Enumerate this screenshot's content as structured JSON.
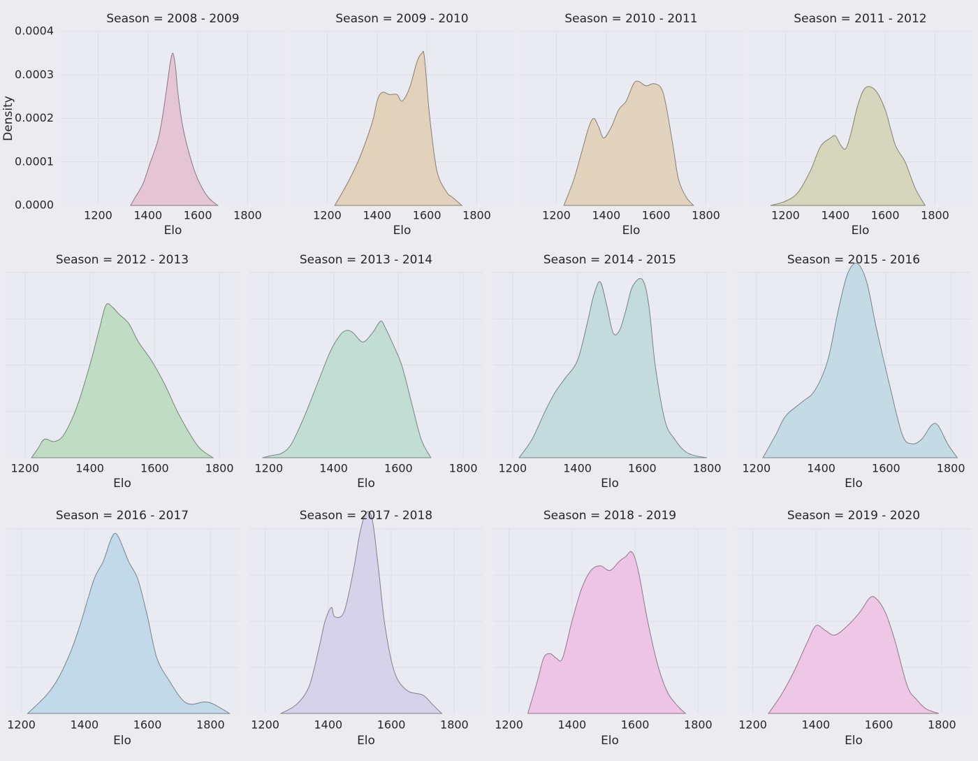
{
  "chart_data": [
    {
      "type": "area",
      "title": "Season = 2008 - 2009",
      "xlabel": "Elo",
      "ylabel": "Density",
      "xlim": [
        1050,
        1950
      ],
      "ylim": [
        0,
        0.0004
      ],
      "yticks": [
        "0.0000",
        "0.0001",
        "0.0002",
        "0.0003",
        "0.0004"
      ],
      "xticks": [
        1200,
        1400,
        1600,
        1800
      ],
      "color": "#e5c5d3",
      "x": [
        1330,
        1350,
        1380,
        1410,
        1440,
        1460,
        1480,
        1490,
        1500,
        1510,
        1520,
        1540,
        1570,
        1600,
        1640,
        1680
      ],
      "y": [
        0,
        2e-05,
        5e-05,
        0.0001,
        0.00015,
        0.00021,
        0.00029,
        0.00033,
        0.00035,
        0.00032,
        0.00026,
        0.00018,
        0.00011,
        6e-05,
        2e-05,
        0
      ]
    },
    {
      "type": "area",
      "title": "Season = 2009 - 2010",
      "xlabel": "Elo",
      "xlim": [
        1050,
        1950
      ],
      "ylim": [
        0,
        0.0004
      ],
      "xticks": [
        1200,
        1400,
        1600,
        1800
      ],
      "color": "#e2d1bb",
      "x": [
        1230,
        1280,
        1330,
        1380,
        1400,
        1420,
        1450,
        1480,
        1500,
        1530,
        1560,
        1580,
        1590,
        1610,
        1640,
        1680,
        1700,
        1740
      ],
      "y": [
        0,
        5e-05,
        0.00011,
        0.00019,
        0.00024,
        0.00026,
        0.000255,
        0.000255,
        0.00024,
        0.00027,
        0.00033,
        0.00035,
        0.00034,
        0.00021,
        8e-05,
        3e-05,
        2e-05,
        0
      ]
    },
    {
      "type": "area",
      "title": "Season = 2010 - 2011",
      "xlabel": "Elo",
      "xlim": [
        1050,
        1950
      ],
      "ylim": [
        0,
        0.0004
      ],
      "xticks": [
        1200,
        1400,
        1600,
        1800
      ],
      "color": "#e2d3bf",
      "x": [
        1230,
        1270,
        1300,
        1330,
        1350,
        1370,
        1390,
        1420,
        1450,
        1480,
        1510,
        1530,
        1560,
        1590,
        1620,
        1640,
        1670,
        1690,
        1720,
        1750
      ],
      "y": [
        0,
        6e-05,
        0.00012,
        0.00018,
        0.0002,
        0.00018,
        0.000155,
        0.00018,
        0.00022,
        0.00024,
        0.00028,
        0.000285,
        0.000275,
        0.00028,
        0.00027,
        0.00023,
        0.00013,
        6e-05,
        2e-05,
        0
      ]
    },
    {
      "type": "area",
      "title": "Season = 2011 - 2012",
      "xlabel": "Elo",
      "xlim": [
        1050,
        1950
      ],
      "ylim": [
        0,
        0.0004
      ],
      "xticks": [
        1200,
        1400,
        1600,
        1800
      ],
      "color": "#d6d6bc",
      "x": [
        1140,
        1200,
        1250,
        1300,
        1340,
        1380,
        1400,
        1420,
        1440,
        1460,
        1490,
        1520,
        1560,
        1600,
        1640,
        1680,
        1720,
        1760
      ],
      "y": [
        0,
        1e-05,
        3e-05,
        8e-05,
        0.000135,
        0.000155,
        0.00016,
        0.00014,
        0.00013,
        0.00016,
        0.00023,
        0.00027,
        0.000265,
        0.00022,
        0.00014,
        0.0001,
        4e-05,
        0
      ]
    },
    {
      "type": "area",
      "title": "Season = 2012 - 2013",
      "xlabel": "Elo",
      "xlim": [
        1140,
        1860
      ],
      "ylim": [
        0,
        0.0004
      ],
      "xticks": [
        1200,
        1400,
        1600,
        1800
      ],
      "color": "#c1dcc4",
      "x": [
        1220,
        1240,
        1260,
        1290,
        1320,
        1360,
        1400,
        1430,
        1450,
        1470,
        1490,
        1520,
        1550,
        1590,
        1630,
        1670,
        1710,
        1740,
        1780
      ],
      "y": [
        0,
        2e-05,
        4e-05,
        3.5e-05,
        5e-05,
        0.00011,
        0.0002,
        0.00028,
        0.00033,
        0.000325,
        0.00031,
        0.00029,
        0.00025,
        0.00021,
        0.00016,
        0.0001,
        5e-05,
        2e-05,
        0
      ]
    },
    {
      "type": "area",
      "title": "Season = 2013 - 2014",
      "xlabel": "Elo",
      "xlim": [
        1140,
        1860
      ],
      "ylim": [
        0,
        0.0004
      ],
      "xticks": [
        1200,
        1400,
        1600,
        1800
      ],
      "color": "#c2ddd4",
      "x": [
        1180,
        1210,
        1240,
        1270,
        1310,
        1350,
        1390,
        1420,
        1440,
        1460,
        1490,
        1520,
        1545,
        1560,
        1580,
        1610,
        1640,
        1670,
        1700
      ],
      "y": [
        0,
        5e-06,
        1e-05,
        3e-05,
        9e-05,
        0.00016,
        0.00023,
        0.000265,
        0.000275,
        0.00027,
        0.00025,
        0.00027,
        0.000295,
        0.00028,
        0.00025,
        0.0002,
        0.00012,
        4e-05,
        0
      ]
    },
    {
      "type": "area",
      "title": "Season = 2014 - 2015",
      "xlabel": "Elo",
      "xlim": [
        1140,
        1860
      ],
      "ylim": [
        0,
        0.0004
      ],
      "xticks": [
        1200,
        1400,
        1600,
        1800
      ],
      "color": "#c4dbdd",
      "x": [
        1220,
        1260,
        1300,
        1330,
        1360,
        1400,
        1430,
        1450,
        1470,
        1490,
        1510,
        1530,
        1550,
        1570,
        1600,
        1620,
        1640,
        1670,
        1700,
        1730,
        1760,
        1800
      ],
      "y": [
        0,
        4e-05,
        0.0001,
        0.00014,
        0.00017,
        0.00021,
        0.00029,
        0.00035,
        0.00038,
        0.00033,
        0.00027,
        0.000275,
        0.00032,
        0.00037,
        0.000385,
        0.00033,
        0.0002,
        8e-05,
        4e-05,
        1.5e-05,
        5e-06,
        0
      ]
    },
    {
      "type": "area",
      "title": "Season = 2015 - 2016",
      "xlabel": "Elo",
      "xlim": [
        1140,
        1860
      ],
      "ylim": [
        0,
        0.0004
      ],
      "xticks": [
        1200,
        1400,
        1600,
        1800
      ],
      "color": "#c4dbe6",
      "x": [
        1220,
        1260,
        1290,
        1340,
        1380,
        1420,
        1450,
        1480,
        1510,
        1540,
        1570,
        1610,
        1650,
        1680,
        1710,
        1740,
        1760,
        1790,
        1820
      ],
      "y": [
        0,
        5e-05,
        9e-05,
        0.00012,
        0.000145,
        0.00021,
        0.00031,
        0.000395,
        0.00042,
        0.00038,
        0.00028,
        0.00016,
        5e-05,
        3e-05,
        4e-05,
        7e-05,
        7e-05,
        3e-05,
        0
      ]
    },
    {
      "type": "area",
      "title": "Season = 2016 - 2017",
      "xlabel": "Elo",
      "xlim": [
        1150,
        1890
      ],
      "ylim": [
        0,
        0.0004
      ],
      "xticks": [
        1200,
        1400,
        1600,
        1800
      ],
      "color": "#c2d9ea",
      "x": [
        1220,
        1280,
        1320,
        1360,
        1390,
        1430,
        1460,
        1480,
        1495,
        1510,
        1540,
        1570,
        1600,
        1630,
        1670,
        1710,
        1740,
        1780,
        1810,
        1860
      ],
      "y": [
        0,
        4e-05,
        8e-05,
        0.00014,
        0.0002,
        0.00029,
        0.00033,
        0.00037,
        0.00039,
        0.00038,
        0.00033,
        0.00029,
        0.00021,
        0.00012,
        7e-05,
        3e-05,
        2e-05,
        2.5e-05,
        2e-05,
        0
      ]
    },
    {
      "type": "area",
      "title": "Season = 2017 - 2018",
      "xlabel": "Elo",
      "xlim": [
        1150,
        1890
      ],
      "ylim": [
        0,
        0.0004
      ],
      "xticks": [
        1200,
        1400,
        1600,
        1800
      ],
      "color": "#d5d2ea",
      "x": [
        1250,
        1300,
        1340,
        1370,
        1390,
        1410,
        1420,
        1450,
        1480,
        1500,
        1520,
        1540,
        1560,
        1580,
        1610,
        1650,
        1700,
        1730,
        1760
      ],
      "y": [
        0,
        2e-05,
        6e-05,
        0.00014,
        0.0002,
        0.00023,
        0.00021,
        0.00022,
        0.00031,
        0.00039,
        0.000435,
        0.00042,
        0.00031,
        0.00019,
        9e-05,
        5e-05,
        4e-05,
        2e-05,
        0
      ]
    },
    {
      "type": "area",
      "title": "Season = 2018 - 2019",
      "xlabel": "Elo",
      "xlim": [
        1150,
        1890
      ],
      "ylim": [
        0,
        0.0004
      ],
      "xticks": [
        1200,
        1400,
        1600,
        1800
      ],
      "color": "#eec4e6",
      "x": [
        1260,
        1290,
        1310,
        1330,
        1350,
        1370,
        1400,
        1430,
        1460,
        1490,
        1520,
        1550,
        1570,
        1590,
        1610,
        1640,
        1670,
        1700,
        1730,
        1760
      ],
      "y": [
        0,
        7e-05,
        0.00012,
        0.00013,
        0.00012,
        0.00012,
        0.0002,
        0.00027,
        0.00031,
        0.00032,
        0.00031,
        0.00033,
        0.00034,
        0.00035,
        0.00031,
        0.0002,
        0.00011,
        5e-05,
        2e-05,
        0
      ]
    },
    {
      "type": "area",
      "title": "Season = 2019 - 2020",
      "xlabel": "Elo",
      "xlim": [
        1150,
        1890
      ],
      "ylim": [
        0,
        0.0004
      ],
      "xticks": [
        1200,
        1400,
        1600,
        1800
      ],
      "color": "#eec6e6",
      "x": [
        1250,
        1290,
        1330,
        1370,
        1400,
        1430,
        1460,
        1500,
        1540,
        1570,
        1590,
        1620,
        1650,
        1690,
        1720,
        1750,
        1790
      ],
      "y": [
        0,
        4e-05,
        9e-05,
        0.00015,
        0.00019,
        0.00018,
        0.00017,
        0.00019,
        0.00022,
        0.00025,
        0.00025,
        0.00022,
        0.00016,
        6e-05,
        3e-05,
        1e-05,
        0
      ]
    }
  ]
}
